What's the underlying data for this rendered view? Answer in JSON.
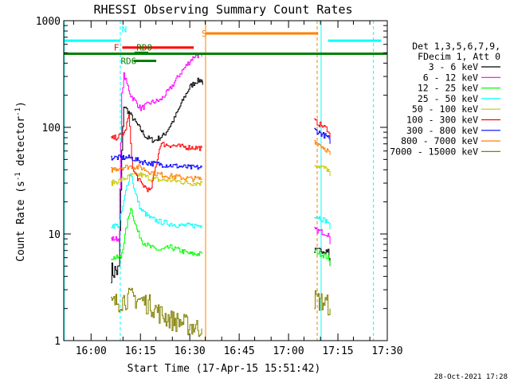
{
  "chart_data": {
    "type": "line",
    "title": "RHESSI Observing Summary Count Rates",
    "xlabel": "Start Time (17-Apr-15 15:51:42)",
    "ylabel": "Count Rate (s⁻¹ detector⁻¹)",
    "ylabel_parts": {
      "pre": "Count Rate (s",
      "sup1": "-1",
      "mid": " detector",
      "sup2": "-1",
      "post": ")"
    },
    "y_scale": "log",
    "ylim": [
      1,
      1000
    ],
    "xlim": [
      15.8617,
      17.5
    ],
    "x_tick_labels": [
      "16:00",
      "16:15",
      "16:30",
      "16:45",
      "17:00",
      "17:15",
      "17:30"
    ],
    "x_tick_values": [
      16.0,
      16.25,
      16.5,
      16.75,
      17.0,
      17.25,
      17.5
    ],
    "y_tick_labels": [
      "1",
      "10",
      "100",
      "1000"
    ],
    "y_tick_values": [
      1,
      10,
      100,
      1000
    ],
    "legend_header": [
      "Det 1,3,5,6,7,9,",
      "FDecim 1, Att 0"
    ],
    "legend_placement": "right",
    "series": [
      {
        "name": "3 - 6 keV",
        "color": "#000000",
        "segments": [
          [
            [
              16.1,
              4.5
            ],
            [
              16.14,
              4.5
            ],
            [
              16.155,
              60
            ],
            [
              16.165,
              160
            ],
            [
              16.2,
              130
            ],
            [
              16.25,
              95
            ],
            [
              16.28,
              80
            ],
            [
              16.32,
              75
            ],
            [
              16.37,
              85
            ],
            [
              16.42,
              120
            ],
            [
              16.47,
              190
            ],
            [
              16.5,
              240
            ],
            [
              16.53,
              270
            ],
            [
              16.56,
              280
            ],
            [
              16.565,
              250
            ]
          ],
          [
            [
              17.13,
              7
            ],
            [
              17.2,
              7
            ],
            [
              17.21,
              5
            ]
          ]
        ]
      },
      {
        "name": "6 - 12 keV",
        "color": "#ff00ff",
        "segments": [
          [
            [
              16.1,
              9
            ],
            [
              16.14,
              9
            ],
            [
              16.155,
              200
            ],
            [
              16.165,
              310
            ],
            [
              16.2,
              200
            ],
            [
              16.25,
              150
            ],
            [
              16.3,
              170
            ],
            [
              16.35,
              180
            ],
            [
              16.4,
              230
            ],
            [
              16.45,
              320
            ],
            [
              16.5,
              420
            ],
            [
              16.53,
              480
            ],
            [
              16.56,
              460
            ]
          ],
          [
            [
              17.13,
              11
            ],
            [
              17.2,
              10
            ],
            [
              17.21,
              8
            ]
          ]
        ]
      },
      {
        "name": "12 - 25 keV",
        "color": "#00ff00",
        "segments": [
          [
            [
              16.1,
              6
            ],
            [
              16.15,
              6
            ],
            [
              16.18,
              12
            ],
            [
              16.2,
              18
            ],
            [
              16.23,
              11
            ],
            [
              16.26,
              8.5
            ],
            [
              16.3,
              7.5
            ],
            [
              16.35,
              7
            ],
            [
              16.4,
              7.5
            ],
            [
              16.45,
              7
            ],
            [
              16.5,
              6.5
            ],
            [
              16.56,
              6.5
            ]
          ],
          [
            [
              17.13,
              7
            ],
            [
              17.2,
              6
            ],
            [
              17.21,
              5
            ]
          ]
        ]
      },
      {
        "name": "25 - 50 keV",
        "color": "#00ffff",
        "segments": [
          [
            [
              16.1,
              12
            ],
            [
              16.14,
              12
            ],
            [
              16.16,
              18
            ],
            [
              16.18,
              28
            ],
            [
              16.2,
              38
            ],
            [
              16.22,
              25
            ],
            [
              16.25,
              17
            ],
            [
              16.3,
              14
            ],
            [
              16.35,
              13
            ],
            [
              16.4,
              12.5
            ],
            [
              16.45,
              12
            ],
            [
              16.5,
              12
            ],
            [
              16.56,
              12
            ]
          ],
          [
            [
              17.13,
              15
            ],
            [
              17.2,
              13
            ],
            [
              17.21,
              11
            ]
          ]
        ]
      },
      {
        "name": "50 - 100 keV",
        "color": "#c8c800",
        "segments": [
          [
            [
              16.1,
              30
            ],
            [
              16.15,
              32
            ],
            [
              16.2,
              35
            ],
            [
              16.25,
              36
            ],
            [
              16.3,
              33
            ],
            [
              16.35,
              32
            ],
            [
              16.4,
              32
            ],
            [
              16.45,
              31
            ],
            [
              16.5,
              30
            ],
            [
              16.56,
              30
            ]
          ],
          [
            [
              17.13,
              45
            ],
            [
              17.2,
              40
            ],
            [
              17.21,
              35
            ]
          ]
        ]
      },
      {
        "name": "100 - 300 keV",
        "color": "#ff0000",
        "segments": [
          [
            [
              16.1,
              78
            ],
            [
              16.14,
              82
            ],
            [
              16.17,
              90
            ],
            [
              16.19,
              130
            ],
            [
              16.21,
              40
            ],
            [
              16.25,
              30
            ],
            [
              16.3,
              25
            ],
            [
              16.35,
              70
            ],
            [
              16.4,
              68
            ],
            [
              16.45,
              66
            ],
            [
              16.5,
              65
            ],
            [
              16.56,
              64
            ]
          ],
          [
            [
              17.13,
              115
            ],
            [
              17.2,
              95
            ],
            [
              17.21,
              80
            ]
          ]
        ]
      },
      {
        "name": "300 - 800 keV",
        "color": "#0000ff",
        "segments": [
          [
            [
              16.1,
              52
            ],
            [
              16.2,
              52
            ],
            [
              16.25,
              48
            ],
            [
              16.3,
              46
            ],
            [
              16.35,
              45
            ],
            [
              16.4,
              44
            ],
            [
              16.45,
              43
            ],
            [
              16.5,
              42
            ],
            [
              16.56,
              42
            ]
          ],
          [
            [
              17.13,
              95
            ],
            [
              17.2,
              80
            ],
            [
              17.21,
              70
            ]
          ]
        ]
      },
      {
        "name": "800 - 7000 keV",
        "color": "#ff8000",
        "segments": [
          [
            [
              16.1,
              40
            ],
            [
              16.15,
              42
            ],
            [
              16.2,
              43
            ],
            [
              16.25,
              42
            ],
            [
              16.3,
              38
            ],
            [
              16.35,
              36
            ],
            [
              16.4,
              35
            ],
            [
              16.45,
              34
            ],
            [
              16.5,
              33
            ],
            [
              16.56,
              33
            ]
          ],
          [
            [
              17.13,
              75
            ],
            [
              17.2,
              60
            ],
            [
              17.21,
              55
            ]
          ]
        ]
      },
      {
        "name": "7000 - 15000 keV",
        "color": "#808000",
        "segments": [
          [
            [
              16.1,
              2.2
            ],
            [
              16.15,
              2.4
            ],
            [
              16.2,
              2.6
            ],
            [
              16.25,
              2.4
            ],
            [
              16.3,
              2.2
            ],
            [
              16.35,
              1.8
            ],
            [
              16.4,
              1.6
            ],
            [
              16.45,
              1.5
            ],
            [
              16.5,
              1.4
            ],
            [
              16.56,
              1.3
            ]
          ],
          [
            [
              17.13,
              2.5
            ],
            [
              17.2,
              2.2
            ],
            [
              17.21,
              2.0
            ]
          ]
        ]
      }
    ],
    "annotations": [
      {
        "text": "N",
        "color": "#00ffff"
      },
      {
        "text": "F",
        "color": "#ff0000"
      },
      {
        "text": "RD0",
        "color": "#008000"
      },
      {
        "text": "RD6",
        "color": "#008000"
      },
      {
        "text": "S",
        "color": "#ff8000"
      }
    ],
    "state_bars": [
      {
        "label": "N",
        "color": "#00ffff",
        "from": 15.8617,
        "to": 16.148,
        "level": 650
      },
      {
        "label": "N",
        "color": "#00ffff",
        "from": 17.2,
        "to": 17.47,
        "level": 650
      },
      {
        "label": "F",
        "color": "#ff0000",
        "from": 16.158,
        "to": 16.52,
        "level": 560
      },
      {
        "label": "RD0",
        "color": "#008000",
        "from": 16.22,
        "to": 16.29,
        "level": 500
      },
      {
        "label": "RD6",
        "color": "#008000",
        "from": 16.215,
        "to": 16.33,
        "level": 420
      },
      {
        "label": "S",
        "color": "#ff8000",
        "from": 16.58,
        "to": 17.15,
        "level": 760
      },
      {
        "label": "",
        "color": "#008000",
        "from": 15.8617,
        "to": 17.5,
        "level": 490
      }
    ],
    "vertical_markers": [
      {
        "x": 15.864,
        "color": "#00ffff",
        "style": "solid"
      },
      {
        "x": 16.148,
        "color": "#00ffff",
        "style": "dashed"
      },
      {
        "x": 16.58,
        "color": "#ff8000",
        "style": "solid"
      },
      {
        "x": 17.145,
        "color": "#ff8000",
        "style": "dashed"
      },
      {
        "x": 17.165,
        "color": "#00ffff",
        "style": "solid"
      },
      {
        "x": 17.43,
        "color": "#00ffff",
        "style": "dashed"
      }
    ]
  },
  "footer": {
    "date_stamp": "28-Oct-2021 17:28"
  }
}
